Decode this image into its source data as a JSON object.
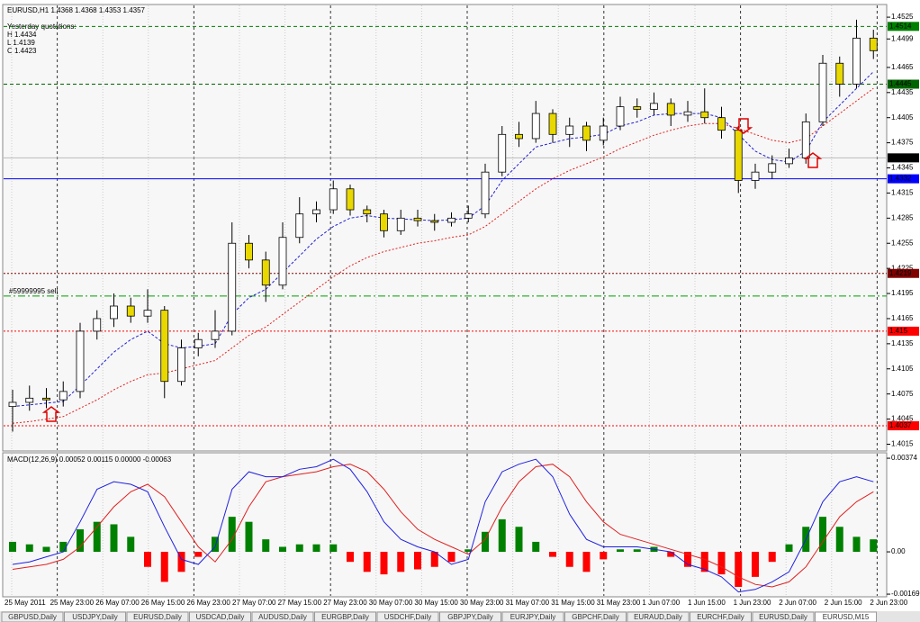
{
  "chart_data": [
    {
      "type": "candlestick",
      "title": "EURUSD,H1  1.4368 1.4368 1.4353 1.4357",
      "info": [
        "Yesterday quotations:",
        "H 1.4434",
        "L 1.4139",
        "C 1.4423"
      ],
      "ylim": [
        1.4008,
        1.4538
      ],
      "yticks": [
        1.4525,
        1.4499,
        1.4465,
        1.4435,
        1.4405,
        1.4375,
        1.4345,
        1.4315,
        1.4285,
        1.4255,
        1.4225,
        1.4195,
        1.4165,
        1.4135,
        1.4105,
        1.4075,
        1.4045,
        1.4015
      ],
      "bull_color": "#ffffff",
      "bear_color": "#e8d800",
      "ohlc": [
        [
          1.406,
          1.408,
          1.403,
          1.4065
        ],
        [
          1.4065,
          1.4085,
          1.4055,
          1.407
        ],
        [
          1.407,
          1.4082,
          1.4058,
          1.4068
        ],
        [
          1.4068,
          1.409,
          1.406,
          1.4078
        ],
        [
          1.4078,
          1.416,
          1.407,
          1.415
        ],
        [
          1.415,
          1.4175,
          1.414,
          1.4165
        ],
        [
          1.4165,
          1.4195,
          1.4155,
          1.418
        ],
        [
          1.418,
          1.419,
          1.416,
          1.4168
        ],
        [
          1.4168,
          1.42,
          1.416,
          1.4175
        ],
        [
          1.4175,
          1.418,
          1.407,
          1.409
        ],
        [
          1.409,
          1.414,
          1.4085,
          1.413
        ],
        [
          1.413,
          1.4148,
          1.412,
          1.414
        ],
        [
          1.414,
          1.4175,
          1.413,
          1.415
        ],
        [
          1.415,
          1.428,
          1.4145,
          1.4255
        ],
        [
          1.4255,
          1.4265,
          1.4225,
          1.4235
        ],
        [
          1.4235,
          1.4245,
          1.4185,
          1.4205
        ],
        [
          1.4205,
          1.428,
          1.42,
          1.4262
        ],
        [
          1.4262,
          1.431,
          1.4255,
          1.429
        ],
        [
          1.429,
          1.4305,
          1.428,
          1.4295
        ],
        [
          1.4295,
          1.433,
          1.429,
          1.432
        ],
        [
          1.432,
          1.4325,
          1.4288,
          1.4295
        ],
        [
          1.4295,
          1.43,
          1.428,
          1.429
        ],
        [
          1.429,
          1.4295,
          1.4262,
          1.427
        ],
        [
          1.427,
          1.4295,
          1.4265,
          1.4285
        ],
        [
          1.4285,
          1.4295,
          1.4275,
          1.4282
        ],
        [
          1.4282,
          1.429,
          1.427,
          1.428
        ],
        [
          1.428,
          1.4292,
          1.4275,
          1.4285
        ],
        [
          1.4285,
          1.43,
          1.428,
          1.429
        ],
        [
          1.429,
          1.435,
          1.4285,
          1.434
        ],
        [
          1.434,
          1.4395,
          1.4335,
          1.4385
        ],
        [
          1.4385,
          1.44,
          1.437,
          1.438
        ],
        [
          1.438,
          1.4425,
          1.4375,
          1.441
        ],
        [
          1.441,
          1.4415,
          1.4375,
          1.4385
        ],
        [
          1.4385,
          1.4405,
          1.437,
          1.4395
        ],
        [
          1.4395,
          1.44,
          1.4365,
          1.4378
        ],
        [
          1.4378,
          1.4405,
          1.4372,
          1.4395
        ],
        [
          1.4395,
          1.443,
          1.439,
          1.4418
        ],
        [
          1.4418,
          1.4428,
          1.4405,
          1.4415
        ],
        [
          1.4415,
          1.4435,
          1.4408,
          1.4422
        ],
        [
          1.4422,
          1.4428,
          1.4395,
          1.4408
        ],
        [
          1.4408,
          1.4425,
          1.44,
          1.4412
        ],
        [
          1.4412,
          1.444,
          1.4398,
          1.4405
        ],
        [
          1.4405,
          1.4418,
          1.438,
          1.439
        ],
        [
          1.439,
          1.4395,
          1.4315,
          1.433
        ],
        [
          1.433,
          1.435,
          1.432,
          1.434
        ],
        [
          1.434,
          1.436,
          1.4332,
          1.435
        ],
        [
          1.435,
          1.4368,
          1.4345,
          1.4357
        ],
        [
          1.4357,
          1.441,
          1.435,
          1.44
        ],
        [
          1.44,
          1.448,
          1.4395,
          1.447
        ],
        [
          1.447,
          1.4478,
          1.443,
          1.4445
        ],
        [
          1.4445,
          1.4522,
          1.444,
          1.45
        ],
        [
          1.45,
          1.451,
          1.4475,
          1.4485
        ]
      ],
      "ma_fast": {
        "color": "#2020d0",
        "values": [
          1.406,
          1.4062,
          1.4064,
          1.4066,
          1.4085,
          1.4105,
          1.4125,
          1.414,
          1.415,
          1.4135,
          1.413,
          1.4132,
          1.4135,
          1.417,
          1.419,
          1.42,
          1.422,
          1.424,
          1.426,
          1.4275,
          1.4285,
          1.4288,
          1.4285,
          1.4284,
          1.4283,
          1.4282,
          1.4283,
          1.4285,
          1.43,
          1.433,
          1.435,
          1.437,
          1.4375,
          1.438,
          1.4382,
          1.4385,
          1.4395,
          1.44,
          1.4408,
          1.441,
          1.441,
          1.441,
          1.4405,
          1.4385,
          1.4365,
          1.4355,
          1.4352,
          1.4365,
          1.44,
          1.442,
          1.444,
          1.446
        ]
      },
      "ma_slow": {
        "color": "#e02020",
        "values": [
          1.404,
          1.4042,
          1.4045,
          1.4048,
          1.4058,
          1.4068,
          1.408,
          1.409,
          1.4098,
          1.41,
          1.4105,
          1.411,
          1.4115,
          1.413,
          1.4145,
          1.4155,
          1.417,
          1.4185,
          1.42,
          1.4215,
          1.4228,
          1.4238,
          1.4245,
          1.425,
          1.4255,
          1.4258,
          1.4262,
          1.4265,
          1.4275,
          1.429,
          1.4305,
          1.432,
          1.4332,
          1.4342,
          1.435,
          1.4358,
          1.4368,
          1.4376,
          1.4384,
          1.439,
          1.4395,
          1.4398,
          1.4398,
          1.4392,
          1.4385,
          1.4378,
          1.4375,
          1.438,
          1.4395,
          1.441,
          1.4425,
          1.444
        ]
      },
      "levels": [
        {
          "value": 1.4514,
          "color": "#008000",
          "style": "dash"
        },
        {
          "value": 1.4445,
          "color": "#006400",
          "style": "dash"
        },
        {
          "value": 1.4357,
          "color": "#000000",
          "style": "solid-light"
        },
        {
          "value": 1.4332,
          "color": "#0000ff",
          "style": "solid"
        },
        {
          "value": 1.4219,
          "color": "#800000",
          "style": "dot"
        },
        {
          "value": 1.415,
          "color": "#ff0000",
          "style": "dot"
        },
        {
          "value": 1.4037,
          "color": "#ff0000",
          "style": "dot"
        }
      ],
      "order": {
        "value": 1.4192,
        "text": "#59999995 sell",
        "color": "#00a000"
      }
    },
    {
      "type": "macd",
      "title": "MACD(12,26,9) 0.00052 0.00115 0.00000 -0.00063",
      "ylim": [
        -0.00176,
        0.00385
      ],
      "yticks": [
        0.00374,
        {
          "value": 0,
          "label": "0.00"
        },
        -0.00169
      ],
      "positive_color": "#008000",
      "negative_color": "#ff0000",
      "histogram": [
        0.0004,
        0.0003,
        0.0002,
        0.0004,
        0.0009,
        0.0012,
        0.0011,
        0.0006,
        -0.0006,
        -0.0012,
        -0.0008,
        -0.0002,
        0.0006,
        0.0014,
        0.0012,
        0.0005,
        0.0002,
        0.0003,
        0.0003,
        0.0003,
        -0.0004,
        -0.0008,
        -0.0009,
        -0.0008,
        -0.0007,
        -0.0006,
        -0.0004,
        0.0001,
        0.0008,
        0.0013,
        0.001,
        0.0004,
        -0.0002,
        -0.0006,
        -0.0008,
        -0.0003,
        0.0001,
        0.0001,
        0.0002,
        -0.0002,
        -0.0006,
        -0.0008,
        -0.0009,
        -0.0014,
        -0.001,
        -0.0004,
        0.0003,
        0.001,
        0.0014,
        0.001,
        0.0006,
        0.0005
      ],
      "main": {
        "color": "#2020e0",
        "values": [
          -0.0005,
          -0.0004,
          -0.0002,
          0.0,
          0.0012,
          0.0025,
          0.0028,
          0.0027,
          0.0024,
          0.001,
          -0.0003,
          -0.0005,
          0.0002,
          0.0025,
          0.0032,
          0.003,
          0.003,
          0.0033,
          0.0034,
          0.0037,
          0.0033,
          0.0024,
          0.0012,
          0.0005,
          0.0002,
          0.0,
          -0.0005,
          -0.0003,
          0.002,
          0.0032,
          0.0035,
          0.0037,
          0.003,
          0.0015,
          0.0005,
          0.0002,
          0.0002,
          0.0002,
          0.0001,
          0.0,
          -0.0005,
          -0.0007,
          -0.001,
          -0.0016,
          -0.0015,
          -0.0012,
          -0.0008,
          0.0005,
          0.002,
          0.0028,
          0.003,
          0.0028
        ]
      },
      "signal": {
        "color": "#e02020",
        "values": [
          -0.0007,
          -0.0006,
          -0.0005,
          -0.0003,
          0.0002,
          0.001,
          0.0018,
          0.0024,
          0.0027,
          0.0022,
          0.0012,
          0.0002,
          -0.0004,
          0.0005,
          0.0018,
          0.0028,
          0.003,
          0.0031,
          0.0032,
          0.0034,
          0.0035,
          0.0032,
          0.0025,
          0.0016,
          0.0009,
          0.0005,
          0.0002,
          -0.0001,
          0.0005,
          0.0018,
          0.0028,
          0.0034,
          0.0035,
          0.003,
          0.002,
          0.0012,
          0.0007,
          0.0005,
          0.0003,
          0.0001,
          -0.0001,
          -0.0003,
          -0.0006,
          -0.001,
          -0.0013,
          -0.0014,
          -0.0012,
          -0.0006,
          0.0004,
          0.0014,
          0.002,
          0.0024
        ]
      }
    }
  ],
  "time_labels": [
    "25 May 2011",
    "25 May 23:00",
    "26 May 07:00",
    "26 May 15:00",
    "26 May 23:00",
    "27 May 07:00",
    "27 May 15:00",
    "27 May 23:00",
    "30 May 07:00",
    "30 May 15:00",
    "30 May 23:00",
    "31 May 07:00",
    "31 May 15:00",
    "31 May 23:00",
    "1 Jun 07:00",
    "1 Jun 15:00",
    "1 Jun 23:00",
    "2 Jun 07:00",
    "2 Jun 15:00",
    "2 Jun 23:00"
  ],
  "tabs": [
    "GBPUSD,Daily",
    "USDJPY,Daily",
    "EURUSD,Daily",
    "USDCAD,Daily",
    "AUDUSD,Daily",
    "EURGBP,Daily",
    "USDCHF,Daily",
    "GBPJPY,Daily",
    "EURJPY,Daily",
    "GBPCHF,Daily",
    "EURAUD,Daily",
    "EURCHF,Daily",
    "EURUSD,Daily",
    "EURUSD,M15"
  ]
}
